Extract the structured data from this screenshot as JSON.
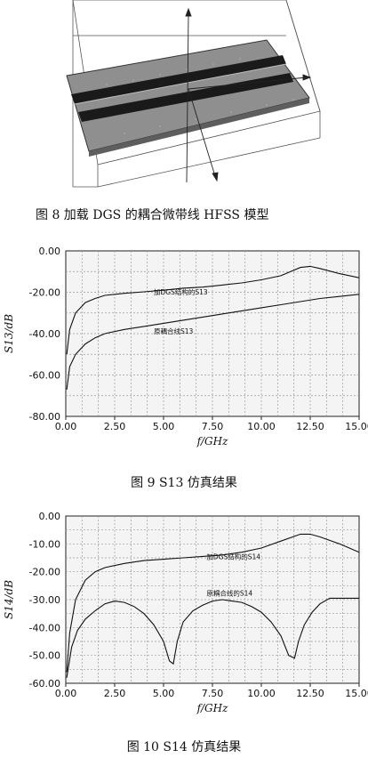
{
  "figure8": {
    "caption": "图 8   加载 DGS 的耦合微带线 HFSS 模型"
  },
  "chart_data": [
    {
      "type": "line",
      "caption": "图 9   S13 仿真结果",
      "xlabel": "f/GHz",
      "ylabel": "S13/dB",
      "xlim": [
        0,
        15
      ],
      "ylim": [
        -80,
        0
      ],
      "xticks": [
        "0.00",
        "2.50",
        "5.00",
        "7.50",
        "10.00",
        "12.50",
        "15.00"
      ],
      "yticks": [
        "0.00",
        "-20.00",
        "-40.00",
        "-60.00",
        "-80.00"
      ],
      "grid": true,
      "series": [
        {
          "name": "加DGS结构的S13",
          "x": [
            0.05,
            0.2,
            0.5,
            1.0,
            1.5,
            2.0,
            3.0,
            4.0,
            5.0,
            6.0,
            7.0,
            8.0,
            9.0,
            10.0,
            11.0,
            12.0,
            12.5,
            13.0,
            14.0,
            15.0
          ],
          "y": [
            -50,
            -38,
            -30,
            -25,
            -23,
            -21.5,
            -20.5,
            -19.8,
            -19,
            -18,
            -17.5,
            -16.5,
            -15.5,
            -14,
            -12,
            -8,
            -7.5,
            -8.5,
            -11,
            -13
          ],
          "label_at": [
            4.5,
            -21
          ]
        },
        {
          "name": "原耦合线S13",
          "x": [
            0.05,
            0.2,
            0.5,
            1.0,
            1.5,
            2.0,
            3.0,
            4.0,
            5.0,
            6.0,
            7.0,
            8.0,
            9.0,
            10.0,
            11.0,
            12.0,
            13.0,
            14.0,
            15.0
          ],
          "y": [
            -67,
            -56,
            -50,
            -45,
            -42,
            -40,
            -38,
            -36.5,
            -35,
            -33.5,
            -32,
            -30.5,
            -29,
            -27.5,
            -26,
            -24.5,
            -23,
            -22,
            -21
          ],
          "label_at": [
            4.5,
            -40
          ]
        }
      ]
    },
    {
      "type": "line",
      "caption": "图 10   S14 仿真结果",
      "xlabel": "f/GHz",
      "ylabel": "S14/dB",
      "xlim": [
        0,
        15
      ],
      "ylim": [
        -60,
        0
      ],
      "xticks": [
        "0.00",
        "2.50",
        "5.00",
        "7.50",
        "10.00",
        "12.50",
        "15.00"
      ],
      "yticks": [
        "0.00",
        "-10.00",
        "-20.00",
        "-30.00",
        "-40.00",
        "-50.00",
        "-60.00"
      ],
      "grid": true,
      "series": [
        {
          "name": "加DGS结构的S14",
          "x": [
            0.05,
            0.2,
            0.5,
            1.0,
            1.5,
            2.0,
            3.0,
            4.0,
            5.0,
            6.0,
            7.0,
            8.0,
            9.0,
            10.0,
            11.0,
            12.0,
            12.5,
            13.0,
            14.0,
            15.0
          ],
          "y": [
            -56,
            -42,
            -30,
            -23,
            -20,
            -18.5,
            -17,
            -16,
            -15.5,
            -15,
            -14.5,
            -14,
            -13,
            -11.5,
            -9,
            -6.5,
            -6.5,
            -7.5,
            -10,
            -13
          ],
          "label_at": [
            7.2,
            -15.5
          ]
        },
        {
          "name": "原耦合线的S14",
          "x": [
            0.05,
            0.3,
            0.6,
            1.0,
            1.5,
            2.0,
            2.5,
            3.0,
            3.5,
            4.0,
            4.5,
            5.0,
            5.3,
            5.5,
            5.7,
            6.0,
            6.5,
            7.0,
            7.5,
            8.0,
            8.5,
            9.0,
            9.5,
            10.0,
            10.5,
            11.0,
            11.4,
            11.7,
            11.9,
            12.2,
            12.6,
            13.0,
            13.5,
            14.0,
            14.5,
            15.0
          ],
          "y": [
            -58,
            -47,
            -41,
            -37,
            -34,
            -31.5,
            -30.5,
            -31,
            -32.5,
            -35,
            -39,
            -45,
            -52,
            -53,
            -45,
            -38,
            -34,
            -32,
            -30.5,
            -30,
            -30.5,
            -31,
            -32.5,
            -34.5,
            -38,
            -43,
            -50,
            -51,
            -45,
            -39,
            -34.5,
            -31.5,
            -29.5,
            -29.5,
            -29.5,
            -29.5
          ],
          "label_at": [
            7.2,
            -28.5
          ]
        }
      ]
    }
  ]
}
